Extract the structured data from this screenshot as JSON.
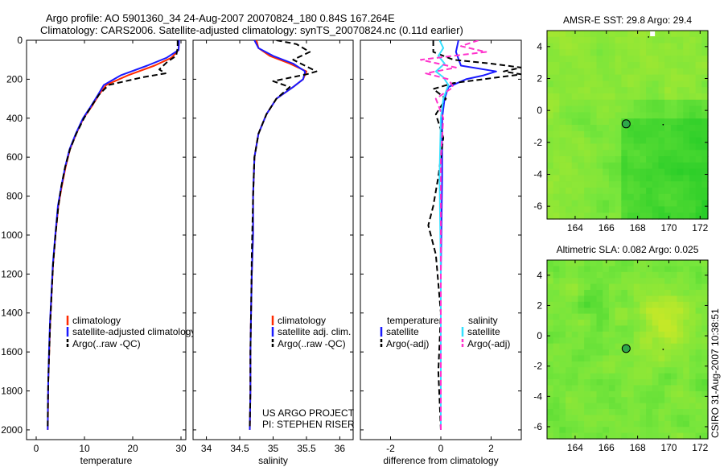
{
  "title": {
    "line1": "Argo profile: AO 5901360_34 24-Aug-2007 20070824_180 0.84S 167.264E",
    "line2": "Climatology: CARS2006. Satellite-adjusted climatology: synTS_20070824.nc (0.11d earlier)"
  },
  "credit": "CSIRO 31-Aug-2007 10:38:51",
  "project": {
    "line1": "US ARGO PROJECT",
    "line2": "PI: STEPHEN RISER"
  },
  "colors": {
    "climatology": "#ff2a00",
    "satellite": "#1a1aff",
    "argo": "#000000",
    "satellite_salinity": "#33e0ff",
    "argo_salinity": "#ff33cc"
  },
  "chart_data": [
    {
      "type": "line",
      "id": "temperature",
      "xlabel": "temperature",
      "ylabel": "",
      "xlim": [
        -2,
        31
      ],
      "ylim": [
        2050,
        0
      ],
      "xticks": [
        0,
        10,
        20,
        30
      ],
      "yticks": [
        0,
        200,
        400,
        600,
        800,
        1000,
        1200,
        1400,
        1600,
        1800,
        2000
      ],
      "legend": [
        "climatology",
        "satellite-adjusted climatology",
        "Argo(..raw -QC)"
      ],
      "series": [
        {
          "name": "climatology",
          "style": "solid",
          "color": "climatology",
          "x": [
            29.6,
            29.5,
            28.0,
            24.5,
            19.0,
            14.5,
            13.0,
            11.5,
            9.8,
            8.3,
            7.0,
            6.1,
            5.3,
            4.6,
            4.0,
            3.5,
            3.2,
            2.9,
            2.7,
            2.5,
            2.45,
            2.4
          ],
          "y": [
            0,
            50,
            90,
            130,
            180,
            230,
            280,
            340,
            400,
            480,
            560,
            650,
            750,
            850,
            1000,
            1150,
            1300,
            1450,
            1600,
            1750,
            1900,
            2000
          ]
        },
        {
          "name": "satellite-adjusted climatology",
          "style": "solid",
          "color": "satellite",
          "x": [
            29.6,
            29.5,
            27.0,
            23.0,
            17.5,
            14.0,
            12.8,
            11.3,
            9.7,
            8.2,
            6.9,
            6.0,
            5.2,
            4.5,
            3.95,
            3.45,
            3.15,
            2.85,
            2.65,
            2.5,
            2.42,
            2.38
          ],
          "y": [
            0,
            50,
            90,
            130,
            180,
            230,
            280,
            340,
            400,
            480,
            560,
            650,
            750,
            850,
            1000,
            1150,
            1300,
            1450,
            1600,
            1750,
            1900,
            2000
          ]
        },
        {
          "name": "Argo(..raw -QC)",
          "style": "dashed",
          "color": "argo",
          "x": [
            29.3,
            29.3,
            29.0,
            27.2,
            25.5,
            26.8,
            22.0,
            15.0,
            13.0,
            11.4,
            9.9,
            8.3,
            7.0,
            6.0,
            5.2,
            4.6,
            4.0,
            3.5,
            3.2,
            2.9,
            2.7,
            2.5,
            2.42,
            2.38
          ],
          "y": [
            0,
            40,
            80,
            110,
            150,
            170,
            190,
            230,
            280,
            340,
            400,
            480,
            560,
            650,
            750,
            850,
            1000,
            1150,
            1300,
            1450,
            1600,
            1750,
            1900,
            1990
          ]
        }
      ]
    },
    {
      "type": "line",
      "id": "salinity",
      "xlabel": "salinity",
      "xlim": [
        33.8,
        36.2
      ],
      "ylim": [
        2050,
        0
      ],
      "xticks": [
        34,
        34.5,
        35,
        35.5,
        36
      ],
      "legend": [
        "climatology",
        "satellite adj. clim.",
        "Argo(..raw -QC)"
      ],
      "series": [
        {
          "name": "climatology",
          "style": "solid",
          "color": "climatology",
          "x": [
            34.75,
            34.78,
            34.95,
            35.25,
            35.5,
            35.45,
            35.3,
            35.05,
            34.9,
            34.78,
            34.72,
            34.7,
            34.7,
            34.68,
            34.67,
            34.66,
            34.66,
            34.65
          ],
          "y": [
            0,
            40,
            80,
            120,
            160,
            200,
            240,
            300,
            380,
            480,
            600,
            800,
            1000,
            1200,
            1400,
            1600,
            1800,
            2000
          ]
        },
        {
          "name": "satellite adj. clim.",
          "style": "solid",
          "color": "satellite",
          "x": [
            34.72,
            34.78,
            35.0,
            35.3,
            35.48,
            35.45,
            35.3,
            35.05,
            34.9,
            34.78,
            34.72,
            34.7,
            34.7,
            34.68,
            34.67,
            34.66,
            34.66,
            34.65
          ],
          "y": [
            0,
            40,
            80,
            120,
            160,
            200,
            240,
            300,
            380,
            480,
            600,
            800,
            1000,
            1200,
            1400,
            1600,
            1800,
            2000
          ]
        },
        {
          "name": "Argo(..raw -QC)",
          "style": "dashed",
          "color": "argo",
          "x": [
            35.05,
            35.35,
            35.55,
            35.3,
            35.65,
            35.5,
            35.0,
            35.25,
            35.05,
            34.9,
            34.78,
            34.72,
            34.7,
            34.68,
            34.67,
            34.66,
            34.66,
            34.65
          ],
          "y": [
            0,
            20,
            60,
            100,
            160,
            175,
            210,
            240,
            300,
            380,
            480,
            600,
            800,
            1100,
            1400,
            1600,
            1800,
            1990
          ]
        }
      ]
    },
    {
      "type": "line",
      "id": "difference",
      "xlabel": "difference from climatology",
      "xlim": [
        -3.2,
        3.2
      ],
      "ylim": [
        2050,
        0
      ],
      "xticks": [
        -2,
        0,
        2
      ],
      "legend_left_title": "temperature",
      "legend_right_title": "salinity",
      "legend": [
        "satellite",
        "Argo(-adj)",
        "satellite",
        "Argo(-adj)"
      ],
      "series": [
        {
          "name": "temperature satellite",
          "style": "solid",
          "color": "satellite",
          "x": [
            0.7,
            0.6,
            0.8,
            2.2,
            1.7,
            1.0,
            0.3,
            0.15,
            0.05,
            0.05,
            0.0,
            0.0
          ],
          "y": [
            0,
            60,
            130,
            160,
            180,
            200,
            240,
            300,
            400,
            700,
            1200,
            2000
          ]
        },
        {
          "name": "temperature Argo(-adj)",
          "style": "dashed",
          "color": "argo",
          "x": [
            -0.3,
            -0.3,
            0.5,
            2.0,
            3.2,
            2.5,
            3.2,
            0.5,
            -0.3,
            0.2,
            -0.2,
            0.1,
            -0.1,
            -0.3,
            -0.5,
            -0.2,
            0.0,
            -0.1,
            0.0
          ],
          "y": [
            0,
            60,
            100,
            120,
            140,
            160,
            175,
            220,
            250,
            300,
            380,
            500,
            700,
            850,
            950,
            1100,
            1400,
            1700,
            2000
          ]
        },
        {
          "name": "salinity satellite",
          "style": "solid",
          "color": "satellite_salinity",
          "x": [
            -0.05,
            0.1,
            -0.1,
            0.15,
            -0.2,
            0.1,
            0.3,
            0.1,
            0.0,
            -0.05,
            0.0,
            0.0
          ],
          "y": [
            0,
            40,
            80,
            120,
            160,
            190,
            230,
            300,
            400,
            700,
            1200,
            2000
          ]
        },
        {
          "name": "salinity Argo(-adj)",
          "style": "dashed",
          "color": "argo_salinity",
          "x": [
            1.5,
            0.8,
            1.8,
            -0.8,
            0.6,
            -0.6,
            0.3,
            0.5,
            -0.2,
            0.1,
            0.0,
            0.0,
            0.0
          ],
          "y": [
            0,
            30,
            60,
            100,
            140,
            170,
            200,
            240,
            300,
            400,
            600,
            1200,
            2000
          ]
        }
      ]
    },
    {
      "type": "heatmap",
      "id": "sst-map",
      "title": "AMSR-E SST: 29.8 Argo: 29.4",
      "xlim": [
        162.2,
        172.5
      ],
      "ylim": [
        -6.8,
        5.0
      ],
      "xticks": [
        164,
        166,
        168,
        170,
        172
      ],
      "yticks": [
        4,
        2,
        0,
        -2,
        -4,
        -6
      ],
      "marker": {
        "lon": 167.264,
        "lat": -0.84
      }
    },
    {
      "type": "heatmap",
      "id": "sla-map",
      "title": "Altimetric SLA: 0.082 Argo: 0.025",
      "xlim": [
        162.2,
        172.5
      ],
      "ylim": [
        -6.8,
        5.0
      ],
      "xticks": [
        164,
        166,
        168,
        170,
        172
      ],
      "yticks": [
        4,
        2,
        0,
        -2,
        -4,
        -6
      ],
      "marker": {
        "lon": 167.264,
        "lat": -0.84
      }
    }
  ]
}
